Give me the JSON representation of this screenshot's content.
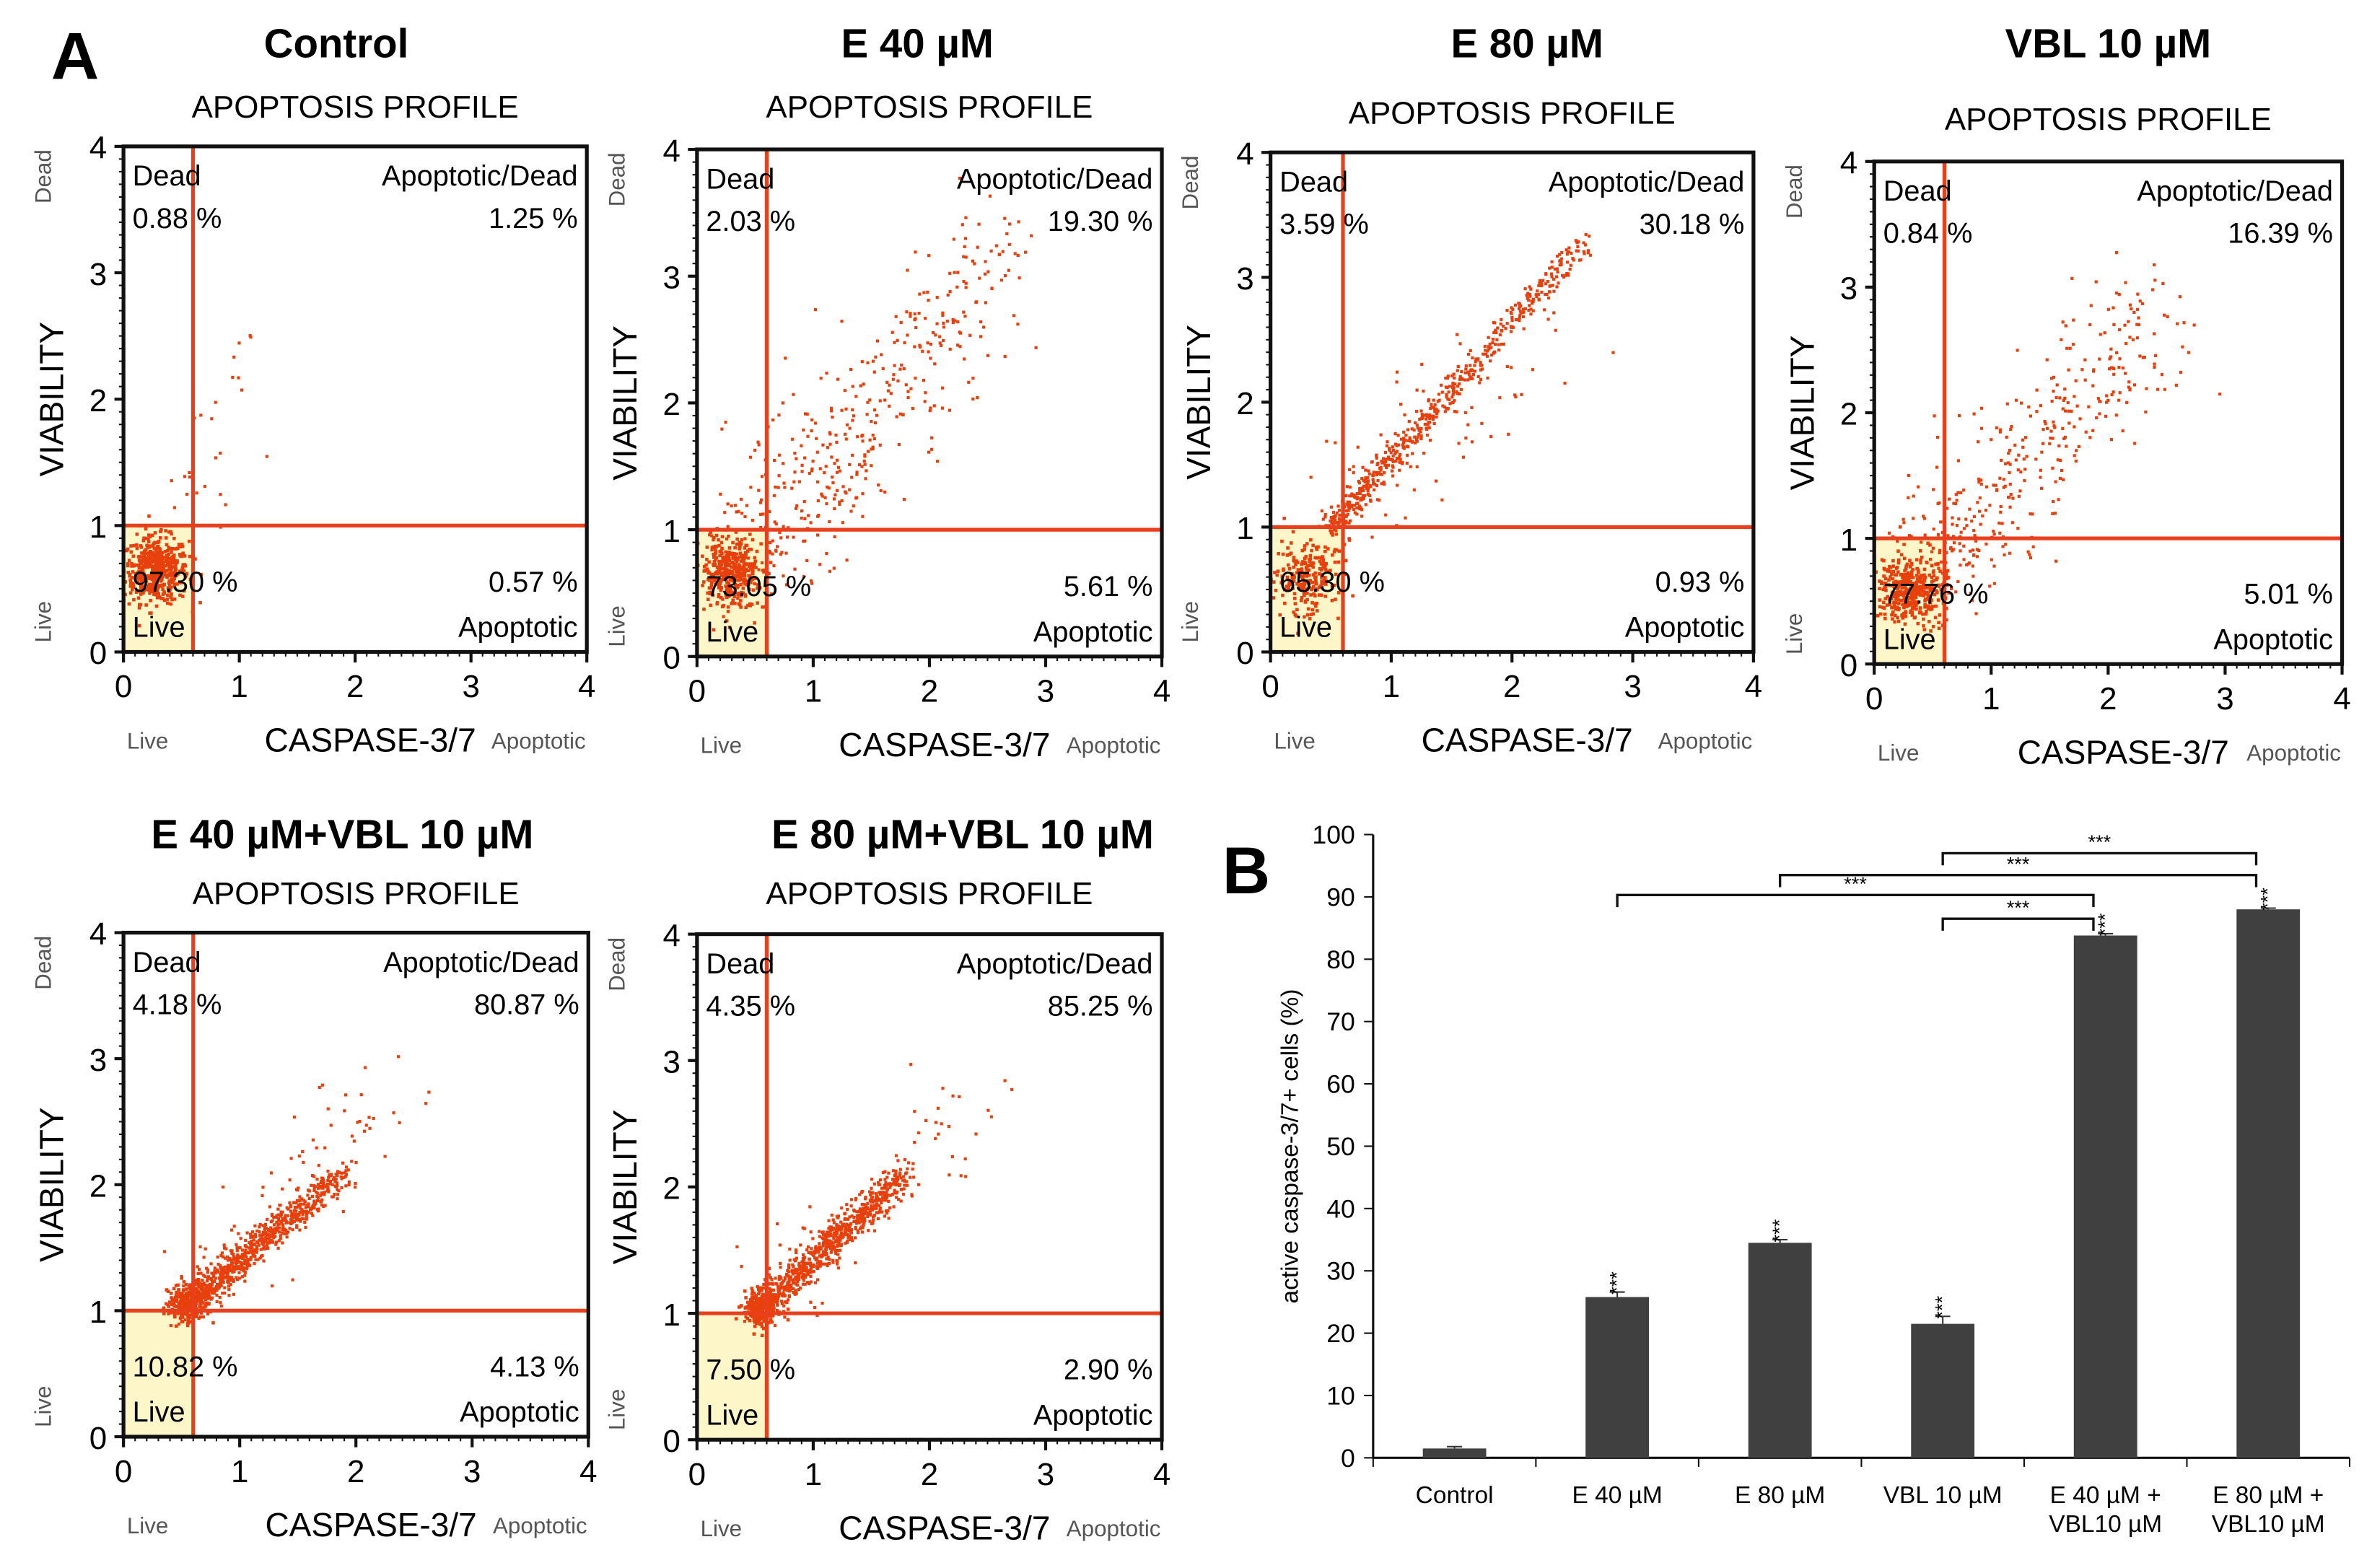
{
  "panel_a_label": "A",
  "panel_b_label": "B",
  "chart_data": [
    {
      "type": "scatter",
      "panels": [
        {
          "title": "Control",
          "dead": "0.88 %",
          "apop_dead": "1.25 %",
          "live": "97.30 %",
          "apoptotic": "0.57 %"
        },
        {
          "title": "E 40 µM",
          "dead": "2.03 %",
          "apop_dead": "19.30 %",
          "live": "73.05 %",
          "apoptotic": "5.61 %"
        },
        {
          "title": "E 80 µM",
          "dead": "3.59 %",
          "apop_dead": "30.18 %",
          "live": "65.30 %",
          "apoptotic": "0.93 %"
        },
        {
          "title": "VBL 10 µM",
          "dead": "0.84 %",
          "apop_dead": "16.39 %",
          "live": "77.76 %",
          "apoptotic": "5.01 %"
        },
        {
          "title": "E 40 µM+VBL 10 µM",
          "dead": "4.18 %",
          "apop_dead": "80.87 %",
          "live": "10.82 %",
          "apoptotic": "4.13 %"
        },
        {
          "title": "E 80 µM+VBL 10 µM",
          "dead": "4.35 %",
          "apop_dead": "85.25 %",
          "live": "7.50 %",
          "apoptotic": "2.90 %"
        }
      ],
      "plot_title": "APOPTOSIS PROFILE",
      "xlabel": "CASPASE-3/7",
      "ylabel": "VIABILITY",
      "x_low_label": "Live",
      "x_high_label": "Apoptotic",
      "y_low_label": "Live",
      "y_high_label": "Dead",
      "quadrant_labels": {
        "dead": "Dead",
        "apop_dead": "Apoptotic/Dead",
        "live": "Live",
        "apoptotic": "Apoptotic"
      },
      "xlim": [
        0,
        4
      ],
      "ylim": [
        0,
        4
      ],
      "xticks": [
        "0",
        "1",
        "2",
        "3",
        "4"
      ],
      "yticks": [
        "0",
        "1",
        "2",
        "3",
        "4"
      ],
      "gates": {
        "x": 0.6,
        "y": 1.0
      },
      "dot_color": "#e8400c",
      "gate_color": "#e8401c",
      "live_fill": "#fdf6c8"
    },
    {
      "type": "bar",
      "categories": [
        "Control",
        "E 40 µM",
        "E 80 µM",
        "VBL 10 µM",
        "E 40 µM + VBL10 µM",
        "E 80 µM + VBL10 µM"
      ],
      "category_lines": [
        [
          "Control"
        ],
        [
          "E 40 µM"
        ],
        [
          "E 80 µM"
        ],
        [
          "VBL 10 µM"
        ],
        [
          "E 40 µM +",
          "VBL10 µM"
        ],
        [
          "E 80 µM +",
          "VBL10 µM"
        ]
      ],
      "values": [
        1.5,
        25.8,
        34.5,
        21.5,
        83.8,
        88.0
      ],
      "errors": [
        0.3,
        0.8,
        0.5,
        1.2,
        0.3,
        0.2
      ],
      "significance": [
        "",
        "***",
        "***",
        "***",
        "***",
        "***"
      ],
      "brackets": [
        {
          "from": 3,
          "to": 4,
          "y": 86.5,
          "label": "***"
        },
        {
          "from": 1,
          "to": 4,
          "y": 90.3,
          "label": "***"
        },
        {
          "from": 2,
          "to": 5,
          "y": 93.5,
          "label": "***"
        },
        {
          "from": 3,
          "to": 5,
          "y": 97.0,
          "label": "***"
        }
      ],
      "ylabel": "active caspase-3/7+ cells (%)",
      "ylim": [
        0,
        100
      ],
      "yticks": [
        "0",
        "10",
        "20",
        "30",
        "40",
        "50",
        "60",
        "70",
        "80",
        "90",
        "100"
      ],
      "bar_color": "#404040"
    }
  ]
}
